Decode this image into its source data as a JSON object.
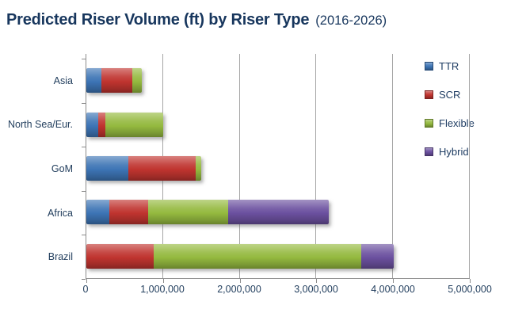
{
  "title": {
    "main": "Predicted Riser Volume (ft) by Riser Type",
    "suffix": "(2016-2026)"
  },
  "colors": {
    "title_text": "#17365d",
    "axis_text": "#24405f",
    "axis_line": "#8c8c8c",
    "gridline": "#a6a6a6",
    "ttr_blue": "#3d74b5",
    "scr_red": "#c0342f",
    "flexible_green": "#94b93f",
    "hybrid_purple": "#6b509f"
  },
  "chart_data": {
    "type": "bar",
    "orientation": "horizontal",
    "stacked": true,
    "title": "Predicted Riser Volume (ft) by Riser Type (2016-2026)",
    "xlabel": "",
    "ylabel": "",
    "grid": true,
    "legend_position": "right",
    "xlim": [
      0,
      5000000
    ],
    "x_ticks": [
      "0",
      "1,000,000",
      "2,000,000",
      "3,000,000",
      "4,000,000",
      "5,000,000"
    ],
    "x_tick_values": [
      0,
      1000000,
      2000000,
      3000000,
      4000000,
      5000000
    ],
    "categories": [
      "Asia",
      "North Sea/Eur.",
      "GoM",
      "Africa",
      "Brazil"
    ],
    "series": [
      {
        "name": "TTR",
        "color": "#3d74b5",
        "values": [
          200000,
          150000,
          550000,
          300000,
          0
        ]
      },
      {
        "name": "SCR",
        "color": "#c0342f",
        "values": [
          400000,
          100000,
          875000,
          500000,
          875000
        ]
      },
      {
        "name": "Flexible",
        "color": "#94b93f",
        "values": [
          125000,
          750000,
          75000,
          1050000,
          2700000
        ]
      },
      {
        "name": "Hybrid",
        "color": "#6b509f",
        "values": [
          0,
          0,
          0,
          1300000,
          425000
        ]
      }
    ],
    "category_totals": [
      725000,
      1000000,
      1500000,
      3150000,
      4000000
    ]
  }
}
